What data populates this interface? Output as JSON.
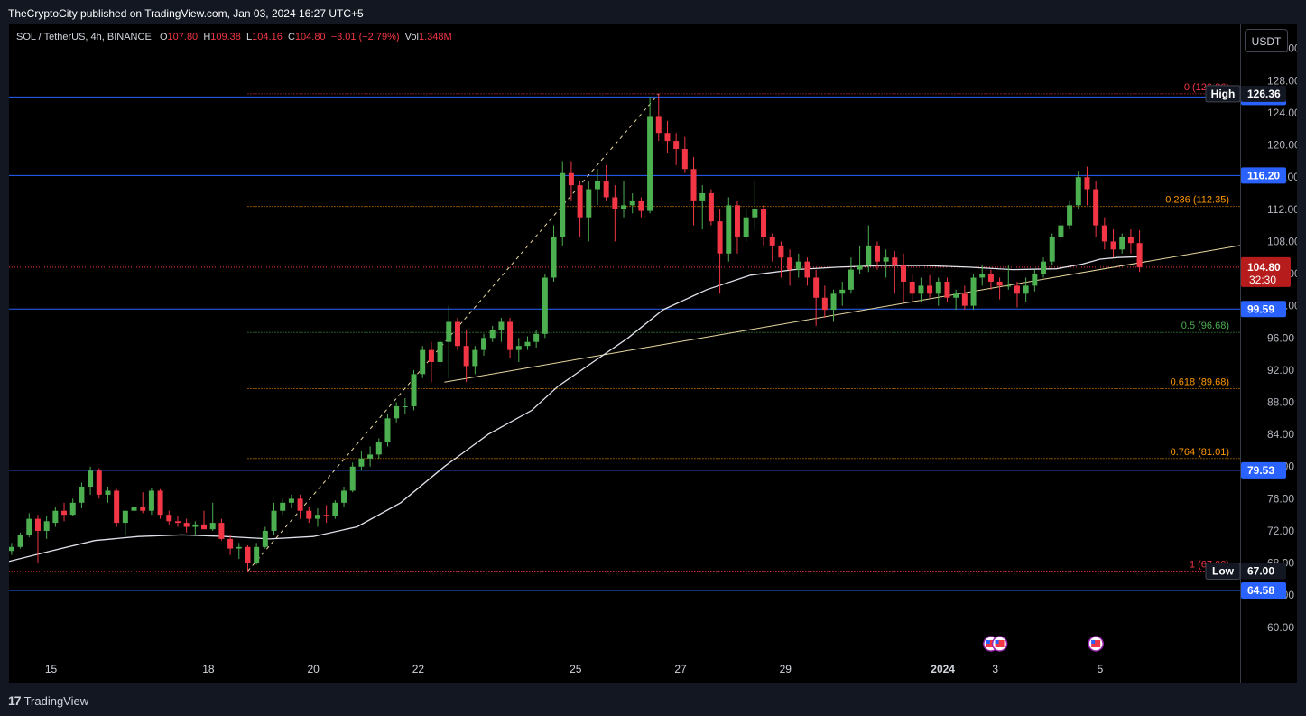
{
  "header": {
    "publisher": "TheCryptoCity published on TradingView.com, Jan 03, 2024 16:27 UTC+5"
  },
  "legend": {
    "symbol": "SOL / TetherUS, 4h, BINANCE",
    "o_label": "O",
    "o": "107.80",
    "h_label": "H",
    "h": "109.38",
    "l_label": "L",
    "l": "104.16",
    "c_label": "C",
    "c": "104.80",
    "change": "−3.01 (−2.79%)",
    "vol_label": "Vol",
    "vol": "1.348M"
  },
  "currency_button": "USDT",
  "footer": {
    "logo_text": "TradingView",
    "logo_mark": "17"
  },
  "colors": {
    "up": "#26a69a",
    "up_fill": "#4caf50",
    "down": "#f23645",
    "hline": "#2962ff",
    "ma": "#e0e3eb",
    "trend": "#e8d9a0",
    "fib_red": "#f23645",
    "fib_orange": "#ff9800",
    "fib_green": "#4caf50"
  },
  "chart_data": {
    "type": "candlestick",
    "y_scale": "linear",
    "ylim": [
      56.5,
      135.0
    ],
    "y_ticks": [
      "60.00",
      "64.00",
      "68.00",
      "72.00",
      "76.00",
      "80.00",
      "84.00",
      "88.00",
      "92.00",
      "96.00",
      "100.00",
      "104.00",
      "108.00",
      "112.00",
      "116.00",
      "120.00",
      "124.00",
      "128.00",
      "132.00"
    ],
    "x_labels": [
      {
        "label": "15",
        "x": 0
      },
      {
        "label": "18",
        "x": 18
      },
      {
        "label": "20",
        "x": 30
      },
      {
        "label": "22",
        "x": 42
      },
      {
        "label": "25",
        "x": 60
      },
      {
        "label": "27",
        "x": 72
      },
      {
        "label": "29",
        "x": 84
      },
      {
        "label": "2024",
        "x": 102
      },
      {
        "label": "3",
        "x": 108
      },
      {
        "label": "5",
        "x": 120
      }
    ],
    "x_unit": "4h bars since Dec 15 00:00",
    "xlim": [
      -4.8,
      136.0
    ],
    "candles": [
      [
        -4.5,
        69.5,
        70.5,
        69.0,
        70.0
      ],
      [
        -3.5,
        70.0,
        71.8,
        69.8,
        71.5
      ],
      [
        -2.5,
        71.5,
        74.2,
        71.2,
        73.5
      ],
      [
        -1.5,
        73.5,
        74.0,
        68.0,
        72.0
      ],
      [
        -0.5,
        72.0,
        73.8,
        71.0,
        73.2
      ],
      [
        0.5,
        73.0,
        75.0,
        72.5,
        74.5
      ],
      [
        1.5,
        74.5,
        75.5,
        73.2,
        74.0
      ],
      [
        2.5,
        74.0,
        76.0,
        73.8,
        75.5
      ],
      [
        3.5,
        75.5,
        78.0,
        74.8,
        77.5
      ],
      [
        4.5,
        77.5,
        80.0,
        76.5,
        79.5
      ],
      [
        5.5,
        79.5,
        79.8,
        76.0,
        76.5
      ],
      [
        6.5,
        76.5,
        77.5,
        75.5,
        77.0
      ],
      [
        7.5,
        77.0,
        77.2,
        72.5,
        73.0
      ],
      [
        8.5,
        73.0,
        74.5,
        71.5,
        74.5
      ],
      [
        9.5,
        74.5,
        75.2,
        74.0,
        75.0
      ],
      [
        10.5,
        75.0,
        76.8,
        74.2,
        74.5
      ],
      [
        11.5,
        74.5,
        77.3,
        74.0,
        77.0
      ],
      [
        12.5,
        77.0,
        77.2,
        73.5,
        74.0
      ],
      [
        13.5,
        74.0,
        74.5,
        72.8,
        73.2
      ],
      [
        14.5,
        73.2,
        73.8,
        72.5,
        73.0
      ],
      [
        15.5,
        73.0,
        73.5,
        71.8,
        72.5
      ],
      [
        16.5,
        72.5,
        73.2,
        71.5,
        72.8
      ],
      [
        17.5,
        72.8,
        74.5,
        72.2,
        72.2
      ],
      [
        18.5,
        72.2,
        75.5,
        72.0,
        73.0
      ],
      [
        19.5,
        73.0,
        73.5,
        70.8,
        71.0
      ],
      [
        20.5,
        71.0,
        71.5,
        69.0,
        69.8
      ],
      [
        21.5,
        69.8,
        70.5,
        68.5,
        70.0
      ],
      [
        22.5,
        70.0,
        70.2,
        67.0,
        68.0
      ],
      [
        23.5,
        68.0,
        70.5,
        67.8,
        70.0
      ],
      [
        24.5,
        70.0,
        72.5,
        69.8,
        72.0
      ],
      [
        25.5,
        72.0,
        75.5,
        71.5,
        74.5
      ],
      [
        26.5,
        74.5,
        76.0,
        74.0,
        75.5
      ],
      [
        27.5,
        75.5,
        76.5,
        74.8,
        76.0
      ],
      [
        28.5,
        76.0,
        76.5,
        73.5,
        74.5
      ],
      [
        29.5,
        74.5,
        75.0,
        73.0,
        73.5
      ],
      [
        30.5,
        73.5,
        74.8,
        72.5,
        74.0
      ],
      [
        31.5,
        74.0,
        75.2,
        73.0,
        73.8
      ],
      [
        32.5,
        73.8,
        75.8,
        73.5,
        75.5
      ],
      [
        33.5,
        75.5,
        77.5,
        75.0,
        77.0
      ],
      [
        34.5,
        77.0,
        80.5,
        76.8,
        80.0
      ],
      [
        35.5,
        80.0,
        82.0,
        79.5,
        81.0
      ],
      [
        36.5,
        81.0,
        82.5,
        80.0,
        81.5
      ],
      [
        37.5,
        81.5,
        83.5,
        81.0,
        83.0
      ],
      [
        38.5,
        83.0,
        86.5,
        82.5,
        86.0
      ],
      [
        39.5,
        86.0,
        88.0,
        85.5,
        87.5
      ],
      [
        40.5,
        87.5,
        88.5,
        86.5,
        87.5
      ],
      [
        41.5,
        87.5,
        92.0,
        87.0,
        91.5
      ],
      [
        42.5,
        91.5,
        95.0,
        91.0,
        94.5
      ],
      [
        43.5,
        94.5,
        95.5,
        90.5,
        93.0
      ],
      [
        44.5,
        93.0,
        96.0,
        92.5,
        95.5
      ],
      [
        45.5,
        95.5,
        100.0,
        91.0,
        98.0
      ],
      [
        46.5,
        98.0,
        98.5,
        94.5,
        95.0
      ],
      [
        47.5,
        95.0,
        97.0,
        90.5,
        92.5
      ],
      [
        48.5,
        92.5,
        95.0,
        91.5,
        94.5
      ],
      [
        49.5,
        94.5,
        96.5,
        93.8,
        96.0
      ],
      [
        50.5,
        96.0,
        97.5,
        95.5,
        97.0
      ],
      [
        51.5,
        97.0,
        98.5,
        95.5,
        98.0
      ],
      [
        52.5,
        98.0,
        98.5,
        93.5,
        94.5
      ],
      [
        53.5,
        94.5,
        96.0,
        93.0,
        95.0
      ],
      [
        54.5,
        95.0,
        96.2,
        94.5,
        95.5
      ],
      [
        55.5,
        95.5,
        97.0,
        94.8,
        96.5
      ],
      [
        56.5,
        96.5,
        104.0,
        96.0,
        103.5
      ],
      [
        57.5,
        103.5,
        110.0,
        103.0,
        108.5
      ],
      [
        58.5,
        108.5,
        118.0,
        107.5,
        116.5
      ],
      [
        59.5,
        116.5,
        118.0,
        113.0,
        115.0
      ],
      [
        60.5,
        115.0,
        115.5,
        108.5,
        111.0
      ],
      [
        61.5,
        111.0,
        115.5,
        108.0,
        114.5
      ],
      [
        62.5,
        114.5,
        117.0,
        112.5,
        115.5
      ],
      [
        63.5,
        115.5,
        117.5,
        113.0,
        113.5
      ],
      [
        64.5,
        113.5,
        115.0,
        108.0,
        112.0
      ],
      [
        65.5,
        112.0,
        115.5,
        111.0,
        112.5
      ],
      [
        66.5,
        112.5,
        114.0,
        111.5,
        113.0
      ],
      [
        67.5,
        113.0,
        113.5,
        111.0,
        111.8
      ],
      [
        68.5,
        111.8,
        126.0,
        111.5,
        123.5
      ],
      [
        69.5,
        123.5,
        126.4,
        120.5,
        121.5
      ],
      [
        70.5,
        121.5,
        123.0,
        119.0,
        120.5
      ],
      [
        71.5,
        120.5,
        121.5,
        117.5,
        119.5
      ],
      [
        72.5,
        119.5,
        121.0,
        116.5,
        117.0
      ],
      [
        73.5,
        117.0,
        118.5,
        110.0,
        113.0
      ],
      [
        74.5,
        113.0,
        115.0,
        109.5,
        114.0
      ],
      [
        75.5,
        114.0,
        114.5,
        110.0,
        110.5
      ],
      [
        76.5,
        110.5,
        112.0,
        101.5,
        106.5
      ],
      [
        77.5,
        106.5,
        113.5,
        105.5,
        112.5
      ],
      [
        78.5,
        112.5,
        113.0,
        106.5,
        108.5
      ],
      [
        79.5,
        108.5,
        112.0,
        108.0,
        111.0
      ],
      [
        80.5,
        111.0,
        115.5,
        109.5,
        112.0
      ],
      [
        81.5,
        112.0,
        112.5,
        107.5,
        108.5
      ],
      [
        82.5,
        108.5,
        109.0,
        105.5,
        107.5
      ],
      [
        83.5,
        107.5,
        108.0,
        103.5,
        106.0
      ],
      [
        84.5,
        106.0,
        107.0,
        102.5,
        104.5
      ],
      [
        85.5,
        104.5,
        106.5,
        103.5,
        105.5
      ],
      [
        86.5,
        105.5,
        106.0,
        102.5,
        103.5
      ],
      [
        87.5,
        103.5,
        104.5,
        97.5,
        101.0
      ],
      [
        88.5,
        101.0,
        102.5,
        98.5,
        99.5
      ],
      [
        89.5,
        99.5,
        102.0,
        98.0,
        101.5
      ],
      [
        90.5,
        101.5,
        103.0,
        100.0,
        102.0
      ],
      [
        91.5,
        102.0,
        106.0,
        101.5,
        104.5
      ],
      [
        92.5,
        104.5,
        107.5,
        104.0,
        105.0
      ],
      [
        93.5,
        105.0,
        110.0,
        104.2,
        107.5
      ],
      [
        94.5,
        107.5,
        108.0,
        104.5,
        105.5
      ],
      [
        95.5,
        105.5,
        107.0,
        103.5,
        106.0
      ],
      [
        96.5,
        106.0,
        106.8,
        101.5,
        105.0
      ],
      [
        97.5,
        105.0,
        106.5,
        100.5,
        103.0
      ],
      [
        98.5,
        103.0,
        104.0,
        100.5,
        101.5
      ]
    ],
    "candles_tail": [
      [
        99.5,
        101.5,
        103.5,
        100.5,
        102.5
      ],
      [
        100.5,
        102.5,
        103.8,
        101.0,
        101.5
      ],
      [
        101.5,
        101.5,
        103.5,
        100.0,
        103.0
      ],
      [
        102.5,
        103.0,
        103.5,
        100.5,
        101.0
      ],
      [
        103.5,
        101.0,
        102.0,
        99.5,
        101.5
      ],
      [
        104.5,
        101.5,
        102.5,
        99.5,
        100.0
      ],
      [
        105.5,
        100.0,
        104.0,
        99.5,
        103.5
      ],
      [
        106.5,
        103.5,
        105.0,
        102.5,
        104.0
      ],
      [
        107.5,
        104.0,
        104.5,
        102.0,
        103.0
      ],
      [
        108.5,
        103.0,
        103.5,
        100.8,
        102.5
      ],
      [
        109.5,
        102.5,
        105.0,
        102.0,
        102.5
      ],
      [
        110.5,
        102.5,
        103.0,
        99.8,
        101.5
      ],
      [
        111.5,
        101.5,
        103.5,
        100.5,
        102.5
      ],
      [
        112.5,
        102.5,
        104.5,
        101.8,
        104.0
      ],
      [
        113.5,
        104.0,
        106.0,
        103.5,
        105.5
      ],
      [
        114.5,
        105.5,
        109.0,
        105.0,
        108.5
      ],
      [
        115.5,
        108.5,
        111.0,
        108.0,
        110.0
      ],
      [
        116.5,
        110.0,
        113.0,
        109.5,
        112.5
      ],
      [
        117.5,
        112.5,
        116.8,
        112.0,
        116.0
      ],
      [
        118.5,
        116.0,
        117.3,
        112.5,
        114.5
      ],
      [
        119.5,
        114.5,
        115.5,
        108.5,
        110.0
      ],
      [
        120.5,
        110.0,
        111.0,
        107.0,
        108.0
      ],
      [
        121.5,
        108.0,
        109.5,
        106.0,
        107.0
      ],
      [
        122.5,
        107.0,
        109.0,
        106.5,
        108.5
      ],
      [
        123.5,
        108.5,
        109.5,
        106.5,
        107.8
      ],
      [
        124.5,
        107.8,
        109.4,
        104.2,
        104.8
      ]
    ],
    "moving_average": [
      [
        -4.8,
        68.2
      ],
      [
        0,
        69.5
      ],
      [
        5,
        70.8
      ],
      [
        10,
        71.3
      ],
      [
        15,
        71.5
      ],
      [
        20,
        71.3
      ],
      [
        25,
        71.0
      ],
      [
        30,
        71.3
      ],
      [
        35,
        72.5
      ],
      [
        40,
        75.5
      ],
      [
        45,
        80.0
      ],
      [
        50,
        84.0
      ],
      [
        55,
        87.0
      ],
      [
        58,
        90.0
      ],
      [
        62,
        93.0
      ],
      [
        66,
        96.0
      ],
      [
        70,
        99.5
      ],
      [
        75,
        102.0
      ],
      [
        80,
        103.8
      ],
      [
        85,
        104.5
      ],
      [
        90,
        104.8
      ],
      [
        95,
        105.0
      ],
      [
        100,
        105.0
      ],
      [
        105,
        104.8
      ],
      [
        110,
        104.5
      ],
      [
        115,
        104.6
      ],
      [
        118,
        105.2
      ],
      [
        120,
        105.8
      ],
      [
        122,
        106.0
      ],
      [
        124.5,
        106.1
      ]
    ],
    "trendline": {
      "from": [
        45,
        90.5
      ],
      "to": [
        136,
        107.5
      ]
    },
    "fib_diagonal": {
      "from": [
        22.5,
        67.0
      ],
      "to": [
        69.5,
        126.36
      ]
    },
    "horizontal_levels": [
      {
        "value": 125.97,
        "label": "125.97"
      },
      {
        "value": 116.2,
        "label": "116.20"
      },
      {
        "value": 99.59,
        "label": "99.59"
      },
      {
        "value": 79.53,
        "label": "79.53"
      },
      {
        "value": 64.58,
        "label": "64.58"
      }
    ],
    "fib_levels": [
      {
        "value": 126.36,
        "label": "0 (126.36)",
        "color": "red"
      },
      {
        "value": 112.35,
        "label": "0.236 (112.35)",
        "color": "orange"
      },
      {
        "value": 96.68,
        "label": "0.5 (96.68)",
        "color": "green"
      },
      {
        "value": 89.68,
        "label": "0.618 (89.68)",
        "color": "orange"
      },
      {
        "value": 81.01,
        "label": "0.764 (81.01)",
        "color": "orange"
      },
      {
        "value": 67.0,
        "label": "1 (67.00)",
        "color": "red"
      }
    ],
    "last_price": {
      "value": 104.8,
      "label": "104.80",
      "countdown": "32:30"
    },
    "high": {
      "value": 126.36,
      "tag": "High",
      "label": "126.36"
    },
    "low": {
      "value": 67.0,
      "tag": "Low",
      "label": "67.00"
    },
    "event_markers_x": [
      107.5,
      108.5,
      119.5
    ]
  }
}
